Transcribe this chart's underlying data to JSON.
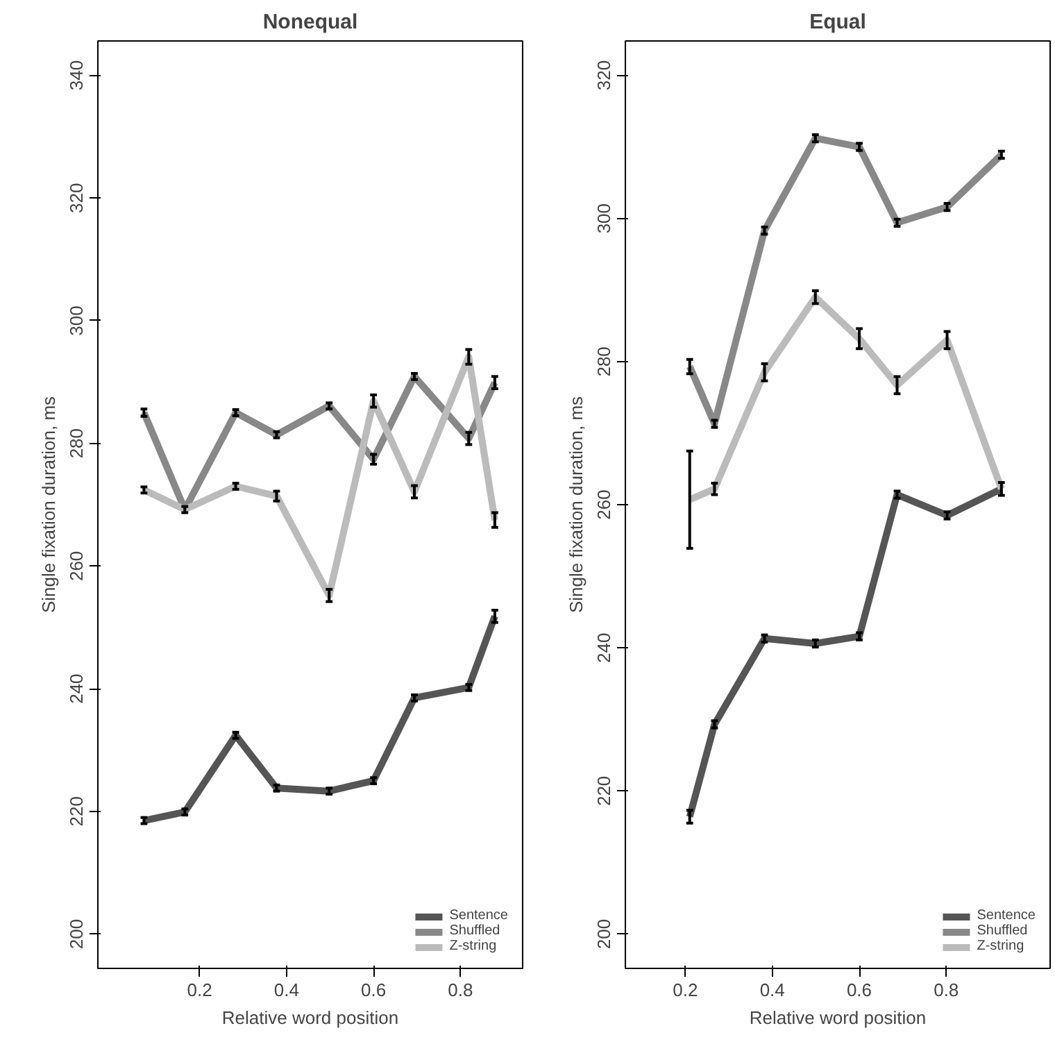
{
  "chart_data": [
    {
      "type": "line",
      "title": "Nonequal",
      "xlabel": "Relative word position",
      "ylabel": "Single fixation duration, ms",
      "x": [
        0.072,
        0.166,
        0.283,
        0.377,
        0.498,
        0.6,
        0.694,
        0.819,
        0.879
      ],
      "xlim": [
        -0.034,
        0.943
      ],
      "xticks": [
        0.2,
        0.4,
        0.6,
        0.8
      ],
      "ylim": [
        194.4,
        345.6
      ],
      "yticks": [
        200,
        220,
        240,
        260,
        280,
        300,
        320,
        340
      ],
      "grid": false,
      "legend": "bottom right",
      "series": [
        {
          "name": "Sentence",
          "color": "#555555",
          "values": [
            218.5,
            219.9,
            232.4,
            223.8,
            223.3,
            225.0,
            238.5,
            240.2,
            251.8
          ],
          "errors": [
            0.5,
            0.5,
            0.5,
            0.5,
            0.5,
            0.5,
            0.5,
            0.5,
            1
          ]
        },
        {
          "name": "Shuffled",
          "color": "#888888",
          "values": [
            285.0,
            269.2,
            285.0,
            281.4,
            286.1,
            277.4,
            290.9,
            280.8,
            289.9
          ],
          "errors": [
            0.6,
            null,
            0.5,
            0.5,
            0.5,
            0.8,
            0.5,
            1,
            1
          ]
        },
        {
          "name": "Z-string",
          "color": "#bbbbbb",
          "values": [
            272.4,
            269.2,
            273.0,
            271.4,
            255.2,
            286.9,
            272.1,
            294.1,
            267.5
          ],
          "errors": [
            0.5,
            0.5,
            0.5,
            0.8,
            1,
            1,
            1,
            1.2,
            1.2
          ]
        }
      ]
    },
    {
      "type": "line",
      "title": "Equal",
      "xlabel": "Relative word position",
      "ylabel": "Single fixation duration, ms",
      "x": [
        0.21,
        0.267,
        0.382,
        0.499,
        0.6,
        0.687,
        0.802,
        0.927
      ],
      "xlim": [
        0.062,
        1.039
      ],
      "xticks": [
        0.2,
        0.4,
        0.6,
        0.8
      ],
      "ylim": [
        195.2,
        324.8
      ],
      "yticks": [
        200,
        220,
        240,
        260,
        280,
        300,
        320
      ],
      "grid": false,
      "legend": "bottom right",
      "series": [
        {
          "name": "Sentence",
          "color": "#555555",
          "values": [
            216.4,
            229.3,
            241.3,
            240.6,
            241.6,
            261.4,
            258.5,
            262.2
          ],
          "errors": [
            0.9,
            0.5,
            0.5,
            0.5,
            0.5,
            0.5,
            0.5,
            null
          ]
        },
        {
          "name": "Shuffled",
          "color": "#888888",
          "values": [
            279.3,
            271.3,
            298.3,
            311.2,
            310.0,
            299.4,
            301.6,
            308.9
          ],
          "errors": [
            1,
            0.5,
            0.5,
            0.5,
            0.5,
            0.5,
            0.5,
            0.5
          ]
        },
        {
          "name": "Z-string",
          "color": "#bbbbbb",
          "values": [
            260.7,
            262.2,
            278.5,
            289.0,
            283.2,
            276.7,
            283.0,
            262.2
          ],
          "errors": [
            6.8,
            0.8,
            1.2,
            0.9,
            1.4,
            1.2,
            1.2,
            0.9
          ]
        }
      ]
    }
  ]
}
